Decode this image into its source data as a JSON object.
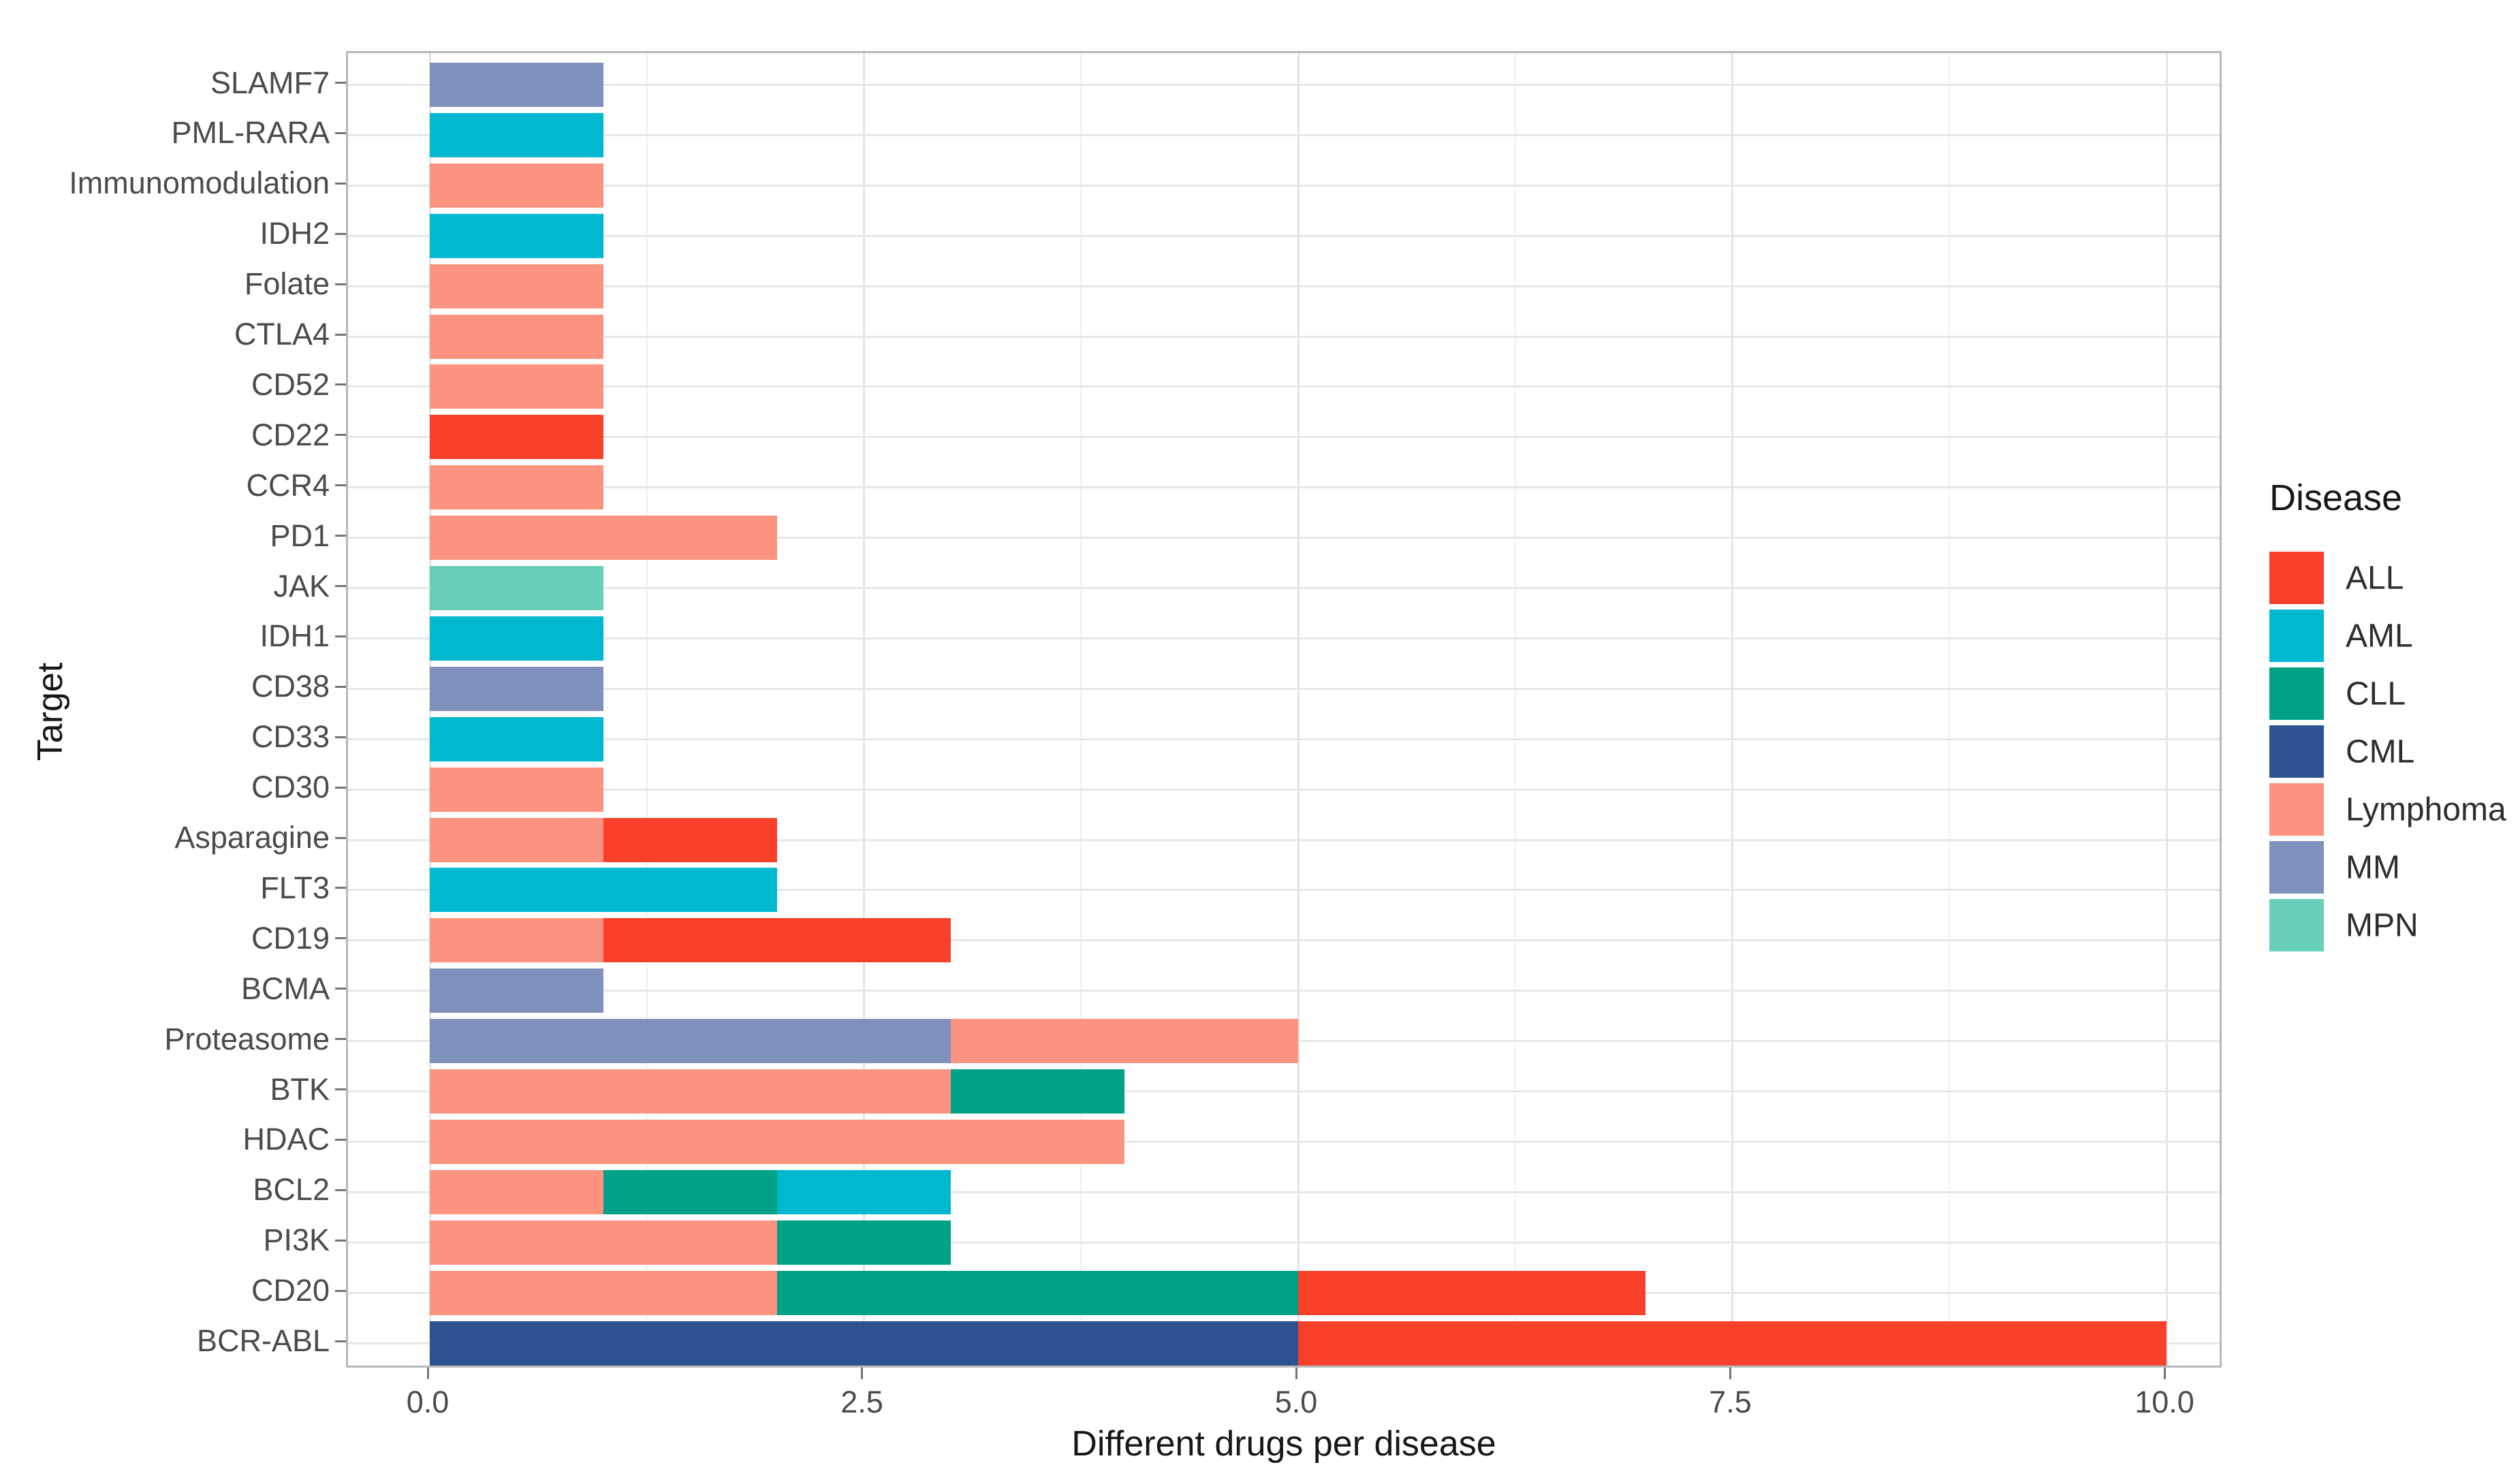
{
  "chart_data": {
    "type": "bar",
    "orientation": "horizontal",
    "stacked": true,
    "xlabel": "Different drugs per disease",
    "ylabel": "Target",
    "xlim": [
      0,
      10
    ],
    "x_major_ticks": [
      0,
      2.5,
      5,
      7.5,
      10
    ],
    "x_tick_labels": [
      "0.0",
      "2.5",
      "5.0",
      "7.5",
      "10.0"
    ],
    "x_minor_ticks": [
      1.25,
      3.75,
      6.25,
      8.75
    ],
    "grid": "major-and-minor-vertical, major-horizontal",
    "legend": {
      "title": "Disease",
      "position": "right",
      "entries": [
        "ALL",
        "AML",
        "CLL",
        "CML",
        "Lymphoma",
        "MM",
        "MPN"
      ]
    },
    "disease_colors": {
      "ALL": "#F8402B",
      "AML": "#00B9D1",
      "CLL": "#00A287",
      "CML": "#2D5291",
      "Lymphoma": "#FC9280",
      "MM": "#8090BC",
      "MPN": "#68CFB8"
    },
    "categories": [
      "SLAMF7",
      "PML-RARA",
      "Immunomodulation",
      "IDH2",
      "Folate",
      "CTLA4",
      "CD52",
      "CD22",
      "CCR4",
      "PD1",
      "JAK",
      "IDH1",
      "CD38",
      "CD33",
      "CD30",
      "Asparagine",
      "FLT3",
      "CD19",
      "BCMA",
      "Proteasome",
      "BTK",
      "HDAC",
      "BCL2",
      "PI3K",
      "CD20",
      "BCR-ABL"
    ],
    "bars": [
      {
        "target": "SLAMF7",
        "segments": [
          {
            "disease": "MM",
            "value": 1
          }
        ]
      },
      {
        "target": "PML-RARA",
        "segments": [
          {
            "disease": "AML",
            "value": 1
          }
        ]
      },
      {
        "target": "Immunomodulation",
        "segments": [
          {
            "disease": "Lymphoma",
            "value": 1
          }
        ]
      },
      {
        "target": "IDH2",
        "segments": [
          {
            "disease": "AML",
            "value": 1
          }
        ]
      },
      {
        "target": "Folate",
        "segments": [
          {
            "disease": "Lymphoma",
            "value": 1
          }
        ]
      },
      {
        "target": "CTLA4",
        "segments": [
          {
            "disease": "Lymphoma",
            "value": 1
          }
        ]
      },
      {
        "target": "CD52",
        "segments": [
          {
            "disease": "Lymphoma",
            "value": 1
          }
        ]
      },
      {
        "target": "CD22",
        "segments": [
          {
            "disease": "ALL",
            "value": 1
          }
        ]
      },
      {
        "target": "CCR4",
        "segments": [
          {
            "disease": "Lymphoma",
            "value": 1
          }
        ]
      },
      {
        "target": "PD1",
        "segments": [
          {
            "disease": "Lymphoma",
            "value": 2
          }
        ]
      },
      {
        "target": "JAK",
        "segments": [
          {
            "disease": "MPN",
            "value": 1
          }
        ]
      },
      {
        "target": "IDH1",
        "segments": [
          {
            "disease": "AML",
            "value": 1
          }
        ]
      },
      {
        "target": "CD38",
        "segments": [
          {
            "disease": "MM",
            "value": 1
          }
        ]
      },
      {
        "target": "CD33",
        "segments": [
          {
            "disease": "AML",
            "value": 1
          }
        ]
      },
      {
        "target": "CD30",
        "segments": [
          {
            "disease": "Lymphoma",
            "value": 1
          }
        ]
      },
      {
        "target": "Asparagine",
        "segments": [
          {
            "disease": "Lymphoma",
            "value": 1
          },
          {
            "disease": "ALL",
            "value": 1
          }
        ]
      },
      {
        "target": "FLT3",
        "segments": [
          {
            "disease": "AML",
            "value": 2
          }
        ]
      },
      {
        "target": "CD19",
        "segments": [
          {
            "disease": "Lymphoma",
            "value": 1
          },
          {
            "disease": "ALL",
            "value": 2
          }
        ]
      },
      {
        "target": "BCMA",
        "segments": [
          {
            "disease": "MM",
            "value": 1
          }
        ]
      },
      {
        "target": "Proteasome",
        "segments": [
          {
            "disease": "MM",
            "value": 3
          },
          {
            "disease": "Lymphoma",
            "value": 2
          }
        ]
      },
      {
        "target": "BTK",
        "segments": [
          {
            "disease": "Lymphoma",
            "value": 3
          },
          {
            "disease": "CLL",
            "value": 1
          }
        ]
      },
      {
        "target": "HDAC",
        "segments": [
          {
            "disease": "Lymphoma",
            "value": 4
          }
        ]
      },
      {
        "target": "BCL2",
        "segments": [
          {
            "disease": "Lymphoma",
            "value": 1
          },
          {
            "disease": "CLL",
            "value": 1
          },
          {
            "disease": "AML",
            "value": 1
          }
        ]
      },
      {
        "target": "PI3K",
        "segments": [
          {
            "disease": "Lymphoma",
            "value": 2
          },
          {
            "disease": "CLL",
            "value": 1
          }
        ]
      },
      {
        "target": "CD20",
        "segments": [
          {
            "disease": "Lymphoma",
            "value": 2
          },
          {
            "disease": "CLL",
            "value": 3
          },
          {
            "disease": "ALL",
            "value": 2
          }
        ]
      },
      {
        "target": "BCR-ABL",
        "segments": [
          {
            "disease": "CML",
            "value": 5
          },
          {
            "disease": "ALL",
            "value": 5
          }
        ]
      }
    ]
  },
  "theme": {
    "background": "#FFFFFF",
    "panel_border": "#B8B8B8",
    "grid_major": "#E4E4E4",
    "grid_minor": "#F1F1F1",
    "tick_mark": "#757575",
    "tick_label_color": "#4B4B4B",
    "axis_title_color": "#171717"
  }
}
